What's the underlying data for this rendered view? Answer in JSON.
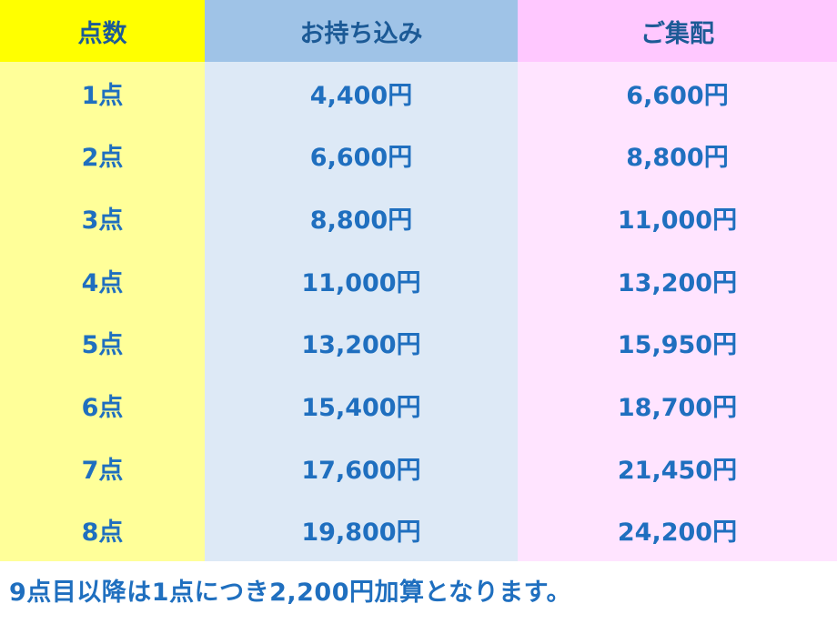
{
  "table": {
    "headers": [
      "点数",
      "お持ち込み",
      "ご集配"
    ],
    "rows": [
      [
        "1点",
        "4,400円",
        "6,600円"
      ],
      [
        "2点",
        "6,600円",
        "8,800円"
      ],
      [
        "3点",
        "8,800円",
        "11,000円"
      ],
      [
        "4点",
        "11,000円",
        "13,200円"
      ],
      [
        "5点",
        "13,200円",
        "15,950円"
      ],
      [
        "6点",
        "15,400円",
        "18,700円"
      ],
      [
        "7点",
        "17,600円",
        "21,450円"
      ],
      [
        "8点",
        "19,800円",
        "24,200円"
      ]
    ]
  },
  "note": "9点目以降は1点につき2,200円加算となります。",
  "colors": {
    "header_count": "#ffff00",
    "header_carry_in": "#9fc3e7",
    "header_pickup": "#ffc8ff",
    "cell_count": "#ffff99",
    "cell_carry_in": "#dde9f6",
    "cell_pickup": "#ffe4ff",
    "text": "#1f6fbf"
  }
}
